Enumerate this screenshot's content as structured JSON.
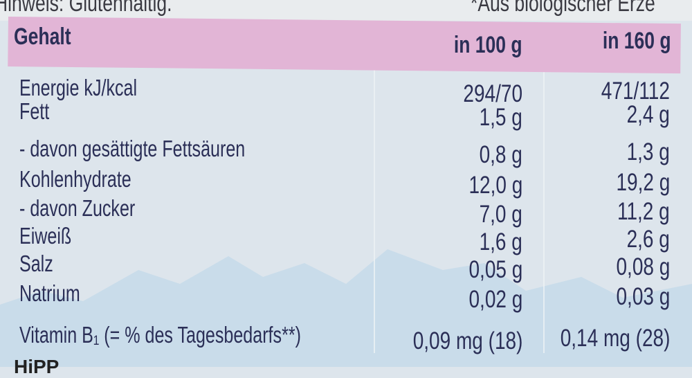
{
  "top_notes": {
    "left": "Hinweis: Glutenhaltig.",
    "right": "*Aus biologischer Erze"
  },
  "header": {
    "label": "Gehalt",
    "col1": "in 100 g",
    "col2": "in 160 g"
  },
  "rows": [
    {
      "label": "Energie kJ/kcal",
      "v1": "294/70",
      "v2": "471/112"
    },
    {
      "label": "Fett",
      "v1": "1,5 g",
      "v2": "2,4 g"
    },
    {
      "label": "- davon gesättigte Fettsäuren",
      "v1": "0,8 g",
      "v2": "1,3 g"
    },
    {
      "label": "Kohlenhydrate",
      "v1": "12,0 g",
      "v2": "19,2 g"
    },
    {
      "label": "- davon Zucker",
      "v1": "7,0 g",
      "v2": "11,2 g"
    },
    {
      "label": "Eiweiß",
      "v1": "1,6 g",
      "v2": "2,6 g"
    },
    {
      "label": "Salz",
      "v1": "0,05 g",
      "v2": "0,08 g"
    },
    {
      "label": "Natrium",
      "v1": "0,02 g",
      "v2": "0,03 g"
    },
    {
      "label": "Vitamin B₁ (= % des Tagesbedarfs**)",
      "v1": "0,09 mg (18)",
      "v2": "0,14 mg (28)"
    }
  ],
  "footer": "HiPP",
  "colors": {
    "text": "#2b2f57",
    "header_band": "#e2b5d6",
    "background": "#dde5ec"
  }
}
